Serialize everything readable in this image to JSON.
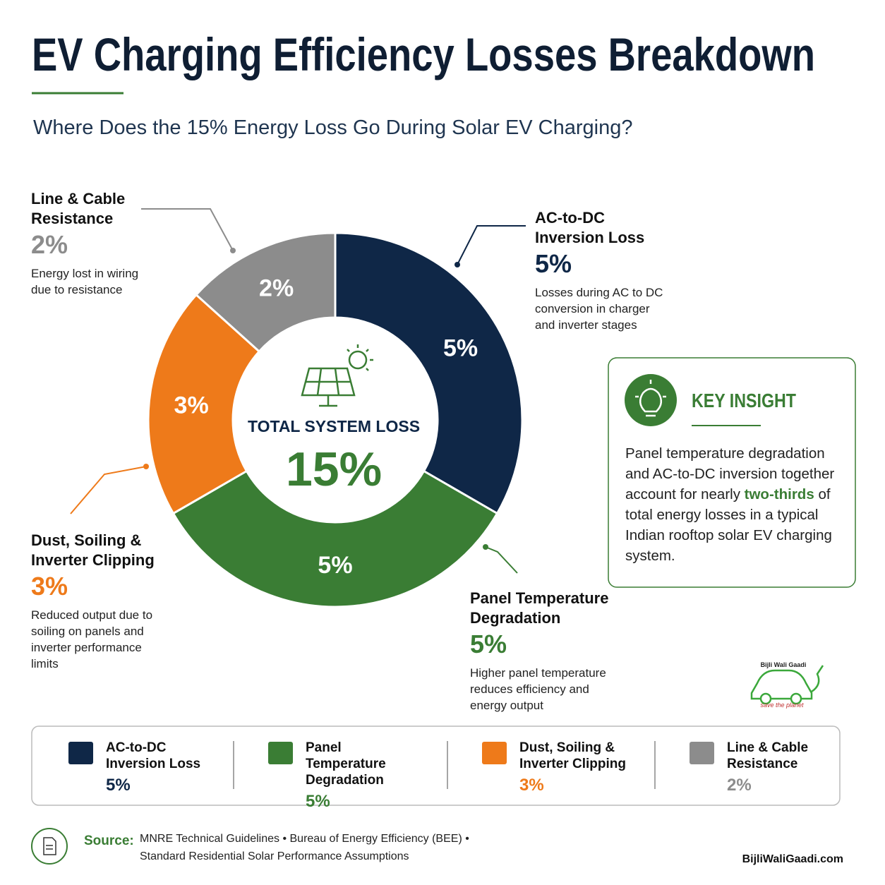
{
  "header": {
    "title": "EV Charging Efficiency Losses Breakdown",
    "subtitle": "Where Does the 15% Energy Loss Go During Solar EV Charging?"
  },
  "chart_data": {
    "type": "donut",
    "categories": [
      "AC-to-DC Inversion Loss",
      "Panel Temperature Degradation",
      "Dust, Soiling & Inverter Clipping",
      "Line & Cable Resistance"
    ],
    "values": [
      5,
      5,
      3,
      2
    ],
    "value_labels": [
      "5%",
      "5%",
      "3%",
      "2%"
    ],
    "colors": [
      "#0f2747",
      "#3a7d34",
      "#ee7a1a",
      "#8c8c8c"
    ],
    "center_title": "TOTAL SYSTEM LOSS",
    "center_value": "15%"
  },
  "callouts": [
    {
      "description": "Losses during AC to DC conversion in charger and inverter stages"
    },
    {
      "description": "Higher panel temperature reduces efficiency and energy output"
    },
    {
      "description": "Reduced output due to soiling on panels and inverter performance limits"
    },
    {
      "description": "Energy lost in wiring due to resistance"
    }
  ],
  "insight": {
    "title": "KEY INSIGHT",
    "text_before": "Panel temperature degradation and AC-to-DC inversion together account for nearly",
    "highlight": "two-thirds",
    "text_after": "of total energy losses in a typical Indian rooftop solar EV charging system."
  },
  "logo": {
    "name": "Bijli Wali Gaadi",
    "tagline": "save the planet"
  },
  "footer": {
    "source_label": "Source:",
    "source_line1": "MNRE Technical Guidelines • Bureau of Energy Efficiency (BEE) •",
    "source_line2": "Standard Residential Solar Performance Assumptions",
    "site": "BijliWaliGaadi.com"
  }
}
